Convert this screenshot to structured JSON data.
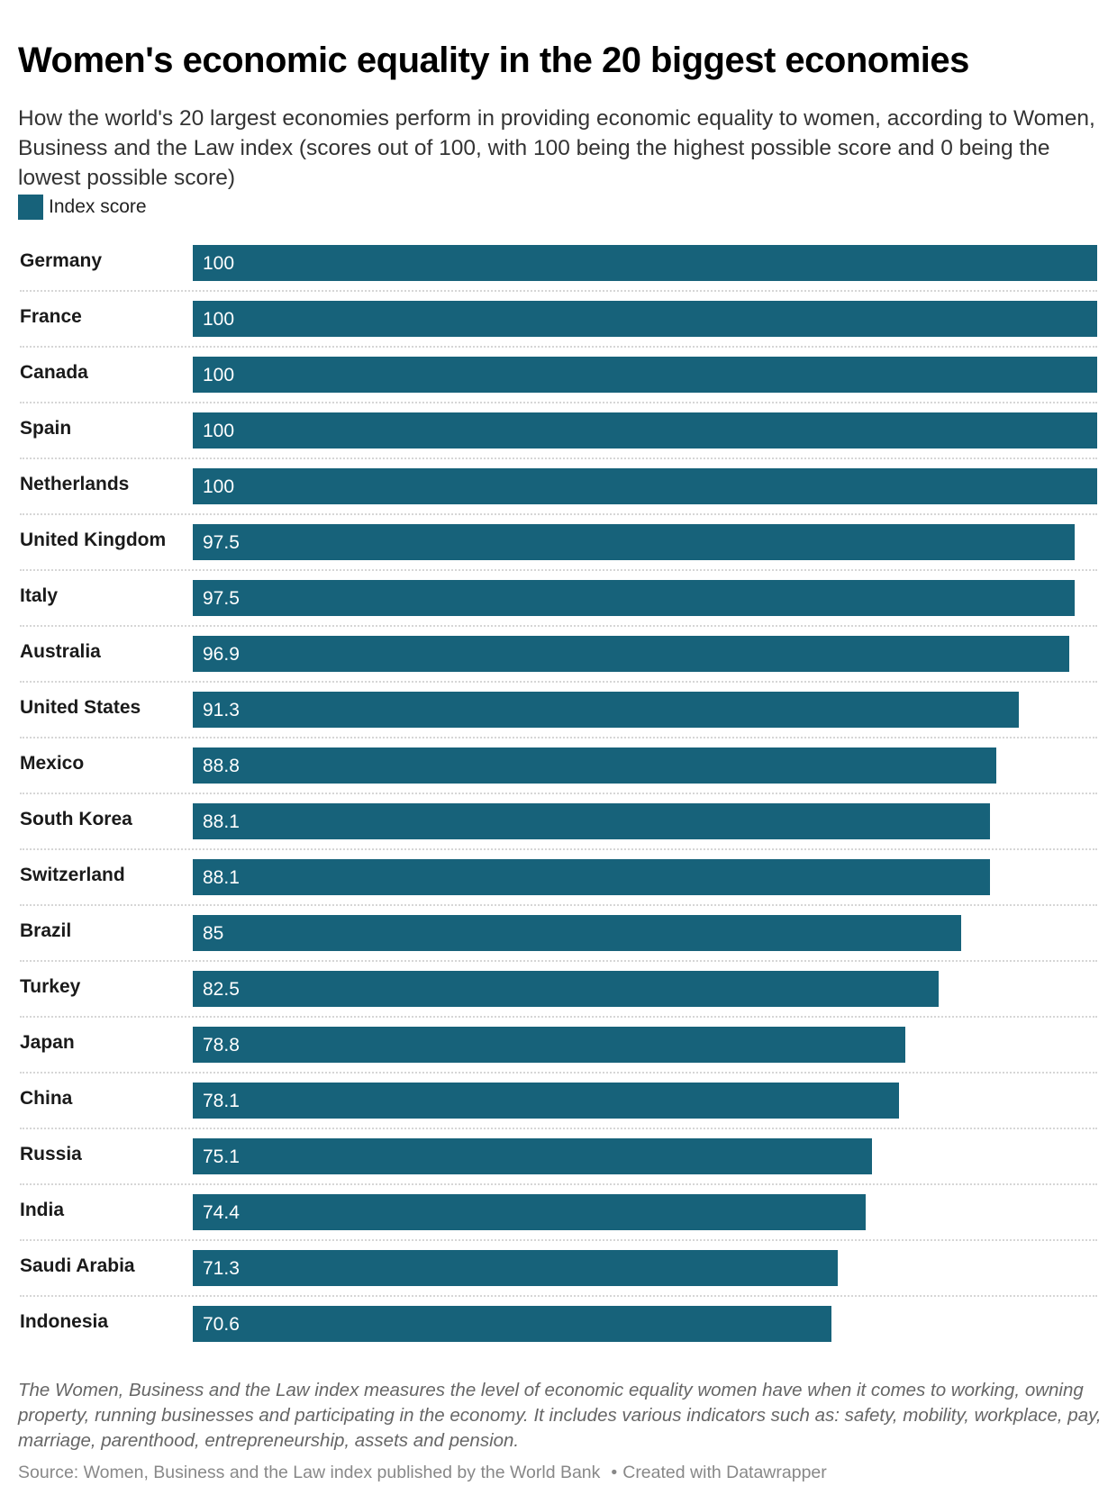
{
  "header": {
    "title": "Women's economic equality in the 20 biggest economies",
    "subtitle": "How the world's 20 largest economies perform in providing economic equality to women, according to Women, Business and the Law index (scores out of 100, with 100 being the highest possible score and 0 being the lowest possible score)"
  },
  "legend": {
    "label": "Index score",
    "color": "#17627a"
  },
  "chart_data": {
    "type": "bar",
    "orientation": "horizontal",
    "title": "Women's economic equality in the 20 biggest economies",
    "xlabel": "",
    "ylabel": "",
    "xlim": [
      0,
      100
    ],
    "grid": false,
    "legend_position": "top-left",
    "categories": [
      "Germany",
      "France",
      "Canada",
      "Spain",
      "Netherlands",
      "United Kingdom",
      "Italy",
      "Australia",
      "United States",
      "Mexico",
      "South Korea",
      "Switzerland",
      "Brazil",
      "Turkey",
      "Japan",
      "China",
      "Russia",
      "India",
      "Saudi Arabia",
      "Indonesia"
    ],
    "series": [
      {
        "name": "Index score",
        "color": "#17627a",
        "values": [
          100,
          100,
          100,
          100,
          100,
          97.5,
          97.5,
          96.9,
          91.3,
          88.8,
          88.1,
          88.1,
          85,
          82.5,
          78.8,
          78.1,
          75.1,
          74.4,
          71.3,
          70.6
        ],
        "labels": [
          "100",
          "100",
          "100",
          "100",
          "100",
          "97.5",
          "97.5",
          "96.9",
          "91.3",
          "88.8",
          "88.1",
          "88.1",
          "85",
          "82.5",
          "78.8",
          "78.1",
          "75.1",
          "74.4",
          "71.3",
          "70.6"
        ]
      }
    ]
  },
  "footer": {
    "notes": "The Women, Business and the Law index measures the level of economic equality women have when it comes to working, owning property, running businesses and participating in the economy. It includes various indicators such as: safety, mobility, workplace, pay, marriage, parenthood, entrepreneurship, assets and pension.",
    "source": "Source: Women, Business and the Law index published by the World Bank",
    "separator": "•",
    "credit": "Created with Datawrapper"
  }
}
